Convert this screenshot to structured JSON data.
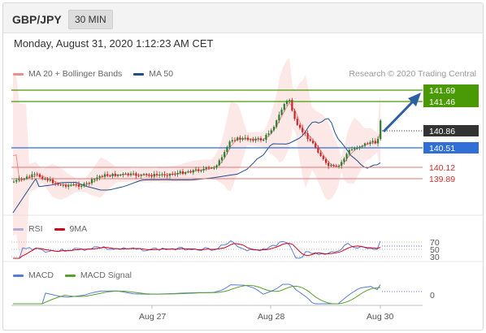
{
  "header": {
    "pair": "GBP/JPY",
    "timeframe": "30 MIN"
  },
  "datetime": "Monday, August 31, 2020 1:12:23 AM CET",
  "main_legend": [
    {
      "label": "MA 20 + Bollinger Bands",
      "color": "#f28b8b"
    },
    {
      "label": "MA 50",
      "color": "#1f4e8c"
    }
  ],
  "copyright": "Research © 2020 Trading Central",
  "levels": {
    "r2": "141.69",
    "r1": "141.46",
    "last": "140.86",
    "pivot": "140.51",
    "s1": "140.12",
    "s2": "139.89"
  },
  "rsi_legend": [
    {
      "label": "RSI",
      "color": "#5b7ad6"
    },
    {
      "label": "9MA",
      "color": "#d0021b"
    }
  ],
  "rsi_axis": [
    "70",
    "50",
    "30"
  ],
  "macd_legend": [
    {
      "label": "MACD",
      "color": "#5b7ad6"
    },
    {
      "label": "MACD Signal",
      "color": "#5aa02c"
    }
  ],
  "macd_axis": [
    "0"
  ],
  "x_axis": [
    "Aug 27",
    "Aug 28",
    "Aug 30"
  ],
  "colors": {
    "up": "#2e7d32",
    "down": "#c62828",
    "resistance": "#4a9a06",
    "support": "#e57373",
    "pivot": "#2f6fd6",
    "arrow": "#2d5fa3"
  }
}
